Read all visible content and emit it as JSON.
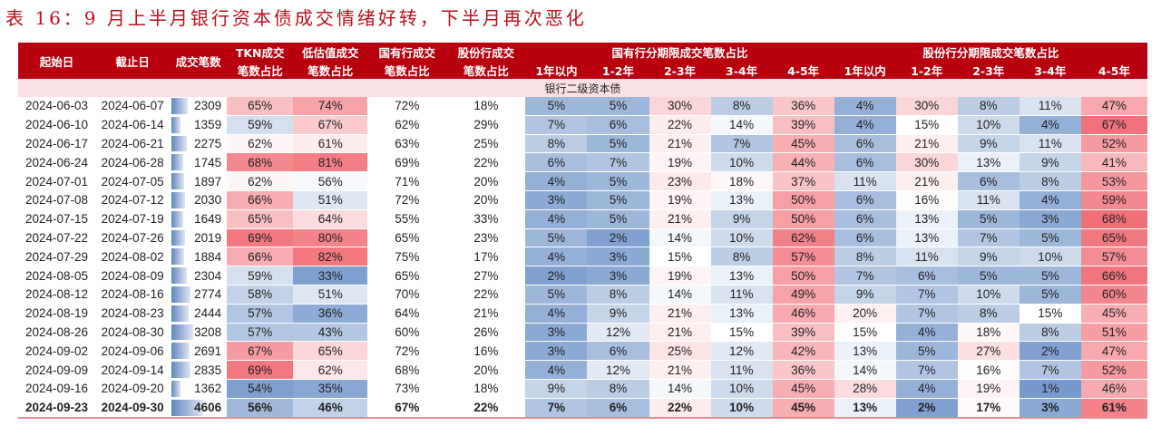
{
  "title": "表 16：9 月上半月银行资本债成交情绪好转，下半月再次恶化",
  "header": {
    "row1": [
      "起始日",
      "截止日",
      "成交笔数",
      "TKN成交",
      "低估值成交",
      "国有行成交",
      "股份行成交",
      "国有行分期限成交笔数占比",
      "股份行分期限成交笔数占比"
    ],
    "row2": [
      "笔数占比",
      "笔数占比",
      "笔数占比",
      "笔数占比"
    ],
    "tenors": [
      "1年以内",
      "1-2年",
      "2-3年",
      "3-4年",
      "4-5年",
      "1年以内",
      "1-2年",
      "2-3年",
      "3-4年",
      "4-5年"
    ]
  },
  "section": "银行二级资本债",
  "colors": {
    "header_bg": "#b8000f",
    "high": "#f06870",
    "low": "#6f95c9",
    "mid": "#ffffff",
    "section_bg": "#fbe1e3"
  },
  "rows": [
    [
      "2024-06-03",
      "2024-06-07",
      "2309",
      "65%",
      "74%",
      "72%",
      "18%",
      "5%",
      "5%",
      "30%",
      "8%",
      "36%",
      "4%",
      "30%",
      "8%",
      "11%",
      "47%"
    ],
    [
      "2024-06-10",
      "2024-06-14",
      "1359",
      "59%",
      "67%",
      "62%",
      "29%",
      "7%",
      "6%",
      "22%",
      "14%",
      "39%",
      "4%",
      "15%",
      "10%",
      "4%",
      "67%"
    ],
    [
      "2024-06-17",
      "2024-06-21",
      "2275",
      "62%",
      "61%",
      "63%",
      "25%",
      "8%",
      "5%",
      "21%",
      "7%",
      "45%",
      "6%",
      "21%",
      "9%",
      "11%",
      "52%"
    ],
    [
      "2024-06-24",
      "2024-06-28",
      "1745",
      "68%",
      "81%",
      "69%",
      "22%",
      "6%",
      "7%",
      "19%",
      "10%",
      "44%",
      "6%",
      "30%",
      "13%",
      "9%",
      "41%"
    ],
    [
      "2024-07-01",
      "2024-07-05",
      "1897",
      "62%",
      "56%",
      "71%",
      "20%",
      "4%",
      "5%",
      "23%",
      "18%",
      "37%",
      "11%",
      "21%",
      "6%",
      "8%",
      "53%"
    ],
    [
      "2024-07-08",
      "2024-07-12",
      "2030",
      "66%",
      "51%",
      "72%",
      "20%",
      "3%",
      "5%",
      "19%",
      "13%",
      "50%",
      "6%",
      "16%",
      "11%",
      "4%",
      "59%"
    ],
    [
      "2024-07-15",
      "2024-07-19",
      "1649",
      "65%",
      "64%",
      "55%",
      "33%",
      "4%",
      "5%",
      "21%",
      "9%",
      "50%",
      "6%",
      "13%",
      "5%",
      "3%",
      "68%"
    ],
    [
      "2024-07-22",
      "2024-07-26",
      "2019",
      "69%",
      "80%",
      "65%",
      "23%",
      "5%",
      "2%",
      "14%",
      "10%",
      "62%",
      "6%",
      "13%",
      "7%",
      "5%",
      "65%"
    ],
    [
      "2024-07-29",
      "2024-08-02",
      "1884",
      "66%",
      "82%",
      "75%",
      "17%",
      "4%",
      "3%",
      "15%",
      "8%",
      "57%",
      "8%",
      "11%",
      "9%",
      "10%",
      "57%"
    ],
    [
      "2024-08-05",
      "2024-08-09",
      "2304",
      "59%",
      "33%",
      "65%",
      "27%",
      "2%",
      "3%",
      "19%",
      "13%",
      "50%",
      "7%",
      "6%",
      "5%",
      "5%",
      "66%"
    ],
    [
      "2024-08-12",
      "2024-08-16",
      "2774",
      "58%",
      "51%",
      "70%",
      "22%",
      "5%",
      "8%",
      "14%",
      "11%",
      "49%",
      "9%",
      "7%",
      "10%",
      "5%",
      "60%"
    ],
    [
      "2024-08-19",
      "2024-08-23",
      "2444",
      "57%",
      "36%",
      "64%",
      "21%",
      "4%",
      "9%",
      "21%",
      "13%",
      "46%",
      "20%",
      "7%",
      "8%",
      "15%",
      "45%"
    ],
    [
      "2024-08-26",
      "2024-08-30",
      "3208",
      "57%",
      "43%",
      "60%",
      "26%",
      "3%",
      "12%",
      "21%",
      "15%",
      "39%",
      "15%",
      "4%",
      "18%",
      "8%",
      "51%"
    ],
    [
      "2024-09-02",
      "2024-09-06",
      "2691",
      "67%",
      "65%",
      "72%",
      "16%",
      "3%",
      "6%",
      "25%",
      "12%",
      "42%",
      "13%",
      "5%",
      "27%",
      "2%",
      "47%"
    ],
    [
      "2024-09-09",
      "2024-09-14",
      "2835",
      "69%",
      "62%",
      "68%",
      "20%",
      "4%",
      "12%",
      "21%",
      "11%",
      "36%",
      "14%",
      "7%",
      "16%",
      "7%",
      "52%"
    ],
    [
      "2024-09-16",
      "2024-09-20",
      "1362",
      "54%",
      "35%",
      "73%",
      "18%",
      "9%",
      "8%",
      "14%",
      "10%",
      "45%",
      "28%",
      "4%",
      "19%",
      "1%",
      "46%"
    ],
    [
      "2024-09-23",
      "2024-09-30",
      "4606",
      "56%",
      "46%",
      "67%",
      "22%",
      "7%",
      "6%",
      "22%",
      "10%",
      "45%",
      "13%",
      "2%",
      "17%",
      "3%",
      "61%"
    ]
  ]
}
